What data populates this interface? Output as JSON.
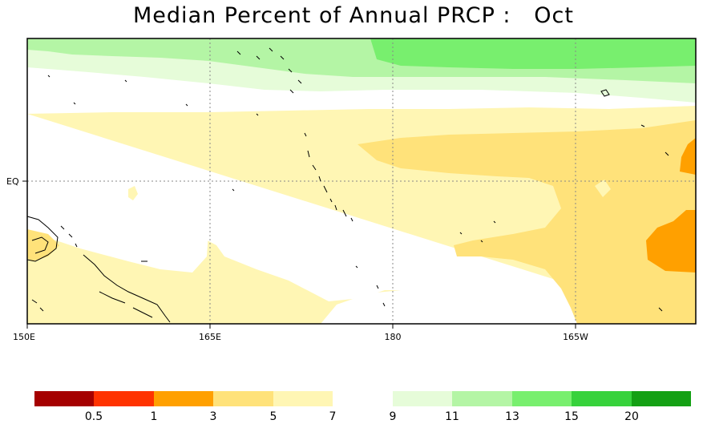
{
  "title": "Median Percent of Annual PRCP :   Oct",
  "map": {
    "lon_labels": [
      "150E",
      "165E",
      "180",
      "165W"
    ],
    "lat_labels": [
      "EQ"
    ]
  },
  "colorbar": {
    "labels": [
      "0.5",
      "1",
      "3",
      "5",
      "7",
      "9",
      "11",
      "13",
      "15",
      "20"
    ],
    "colors": [
      "#a50000",
      "#ff3300",
      "#ffa000",
      "#ffe27a",
      "#fff6b4",
      "#e6fcd9",
      "#b4f5a5",
      "#78ef6e",
      "#37d23c",
      "#14a014"
    ]
  },
  "colors": {
    "background": "#ffffff",
    "coast": "#000000",
    "grid": "#888888"
  }
}
